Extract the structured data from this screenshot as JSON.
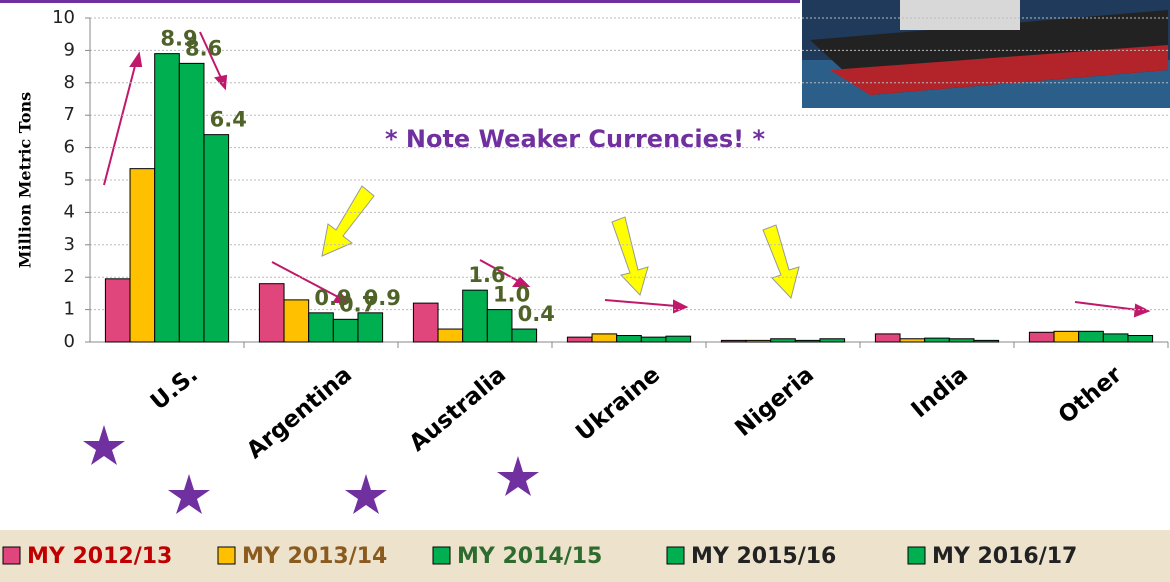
{
  "chart_data": {
    "type": "bar",
    "y_axis_label": "Million Metric Tons",
    "annotation": "* Note Weaker Currencies! *",
    "categories": [
      "U.S.",
      "Argentina",
      "Australia",
      "Ukraine",
      "Nigeria",
      "India",
      "Other"
    ],
    "series": [
      {
        "name": "MY 2012/13",
        "color": "#e0457b",
        "values": [
          1.95,
          1.8,
          1.2,
          0.15,
          0.05,
          0.25,
          0.3
        ]
      },
      {
        "name": "MY 2013/14",
        "color": "#ffc000",
        "values": [
          5.35,
          1.3,
          0.4,
          0.25,
          0.05,
          0.1,
          0.33
        ]
      },
      {
        "name": "MY 2014/15",
        "color": "#00b050",
        "values": [
          8.9,
          0.9,
          1.6,
          0.2,
          0.1,
          0.12,
          0.33
        ],
        "value_labels": [
          "8.9",
          "0.9",
          "1.6",
          null,
          null,
          null,
          null
        ]
      },
      {
        "name": "MY 2015/16",
        "color": "#00b050",
        "values": [
          8.6,
          0.7,
          1.0,
          0.15,
          0.05,
          0.1,
          0.25
        ],
        "value_labels": [
          "8.6",
          "0.7",
          "1.0",
          null,
          null,
          null,
          null
        ]
      },
      {
        "name": "MY 2016/17",
        "color": "#00b050",
        "values": [
          6.4,
          0.9,
          0.4,
          0.18,
          0.1,
          0.05,
          0.2
        ],
        "value_labels": [
          "6.4",
          "0.9",
          "0.4",
          null,
          null,
          null,
          null
        ]
      }
    ],
    "ylim": [
      0,
      10
    ],
    "yticks": [
      0,
      1,
      2,
      3,
      4,
      5,
      6,
      7,
      8,
      9,
      10
    ],
    "grid": true
  }
}
